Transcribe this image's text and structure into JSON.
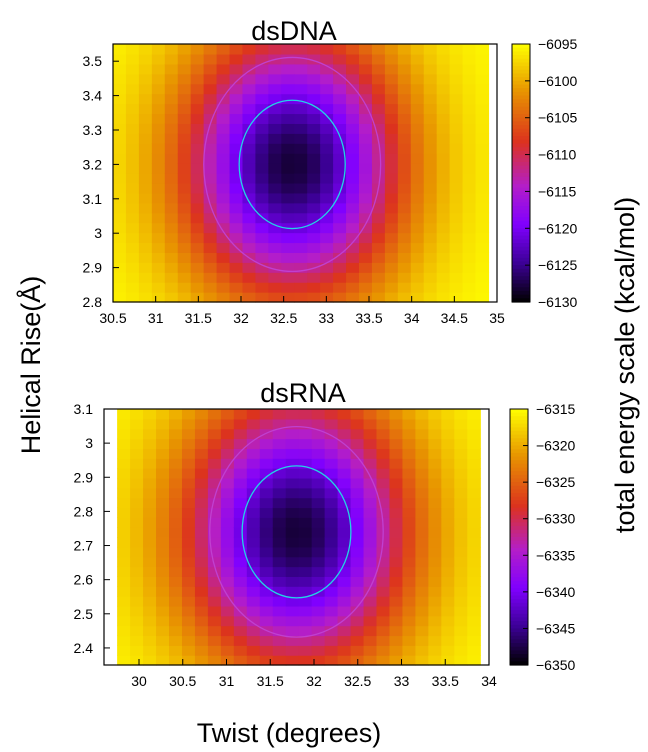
{
  "chart_data": [
    {
      "type": "heatmap",
      "title": "dsDNA",
      "xlim": [
        30.5,
        35
      ],
      "ylim": [
        2.8,
        3.55
      ],
      "x_data_extent": [
        30.5,
        34.9
      ],
      "xticks": [
        30.5,
        31,
        31.5,
        32,
        32.5,
        33,
        33.5,
        34,
        34.5,
        35
      ],
      "yticks": [
        2.8,
        2.9,
        3,
        3.1,
        3.2,
        3.3,
        3.4,
        3.5
      ],
      "zlim": [
        -6130,
        -6095
      ],
      "colorbar_ticks": [
        -6095,
        -6100,
        -6105,
        -6110,
        -6115,
        -6120,
        -6125,
        -6130
      ],
      "minimum": {
        "x": 32.6,
        "y": 3.2,
        "value": -6128
      },
      "contour_levels": [
        -6121,
        -6112
      ],
      "grid": false
    },
    {
      "type": "heatmap",
      "title": "dsRNA",
      "xlim": [
        29.6,
        34
      ],
      "ylim": [
        2.35,
        3.1
      ],
      "x_data_extent": [
        29.75,
        33.9
      ],
      "xticks": [
        30,
        30.5,
        31,
        31.5,
        32,
        32.5,
        33,
        33.5,
        34
      ],
      "yticks": [
        2.4,
        2.5,
        2.6,
        2.7,
        2.8,
        2.9,
        3,
        3.1
      ],
      "zlim": [
        -6350,
        -6315
      ],
      "colorbar_ticks": [
        -6315,
        -6320,
        -6325,
        -6330,
        -6335,
        -6340,
        -6345,
        -6350
      ],
      "minimum": {
        "x": 31.8,
        "y": 2.74,
        "value": -6348
      },
      "contour_levels": [
        -6341,
        -6333
      ],
      "grid": false
    }
  ],
  "labels": {
    "xlabel": "Twist (degrees)",
    "ylabel": "Helical Rise(Å)",
    "colorbar_label": "total energy scale (kcal/mol)"
  },
  "colors": {
    "palette": "black-blue-purple-red-orange-yellow",
    "contour_inner": "#22d3e6",
    "contour_outer": "#c040d0"
  }
}
